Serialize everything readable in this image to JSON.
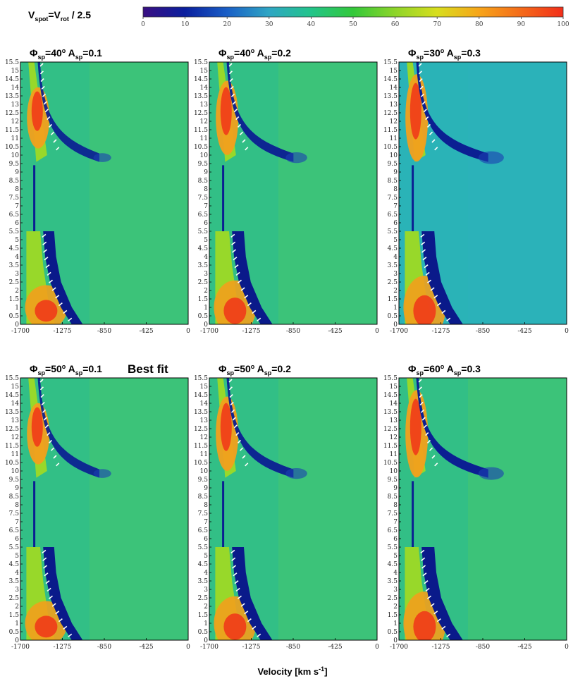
{
  "header": {
    "prefix": "V",
    "spot_sub": "spot",
    "mid": "=V",
    "rot_sub": "rot",
    "suffix": " / 2.5"
  },
  "colorbar": {
    "ticks": [
      "0",
      "10",
      "20",
      "30",
      "40",
      "50",
      "60",
      "70",
      "80",
      "90",
      "100"
    ],
    "min": 0,
    "max": 100,
    "colors": [
      "#3a0f82",
      "#0a1f9e",
      "#1a5fc6",
      "#2fa6c4",
      "#22c48a",
      "#33c83a",
      "#8ed52a",
      "#d8de1e",
      "#f7a51a",
      "#f46a1a",
      "#f22e1a"
    ]
  },
  "chart_data": {
    "type": "heatmap",
    "xlabel": "Velocity [km s",
    "xlabel_sup": "-1",
    "xlabel_end": "]",
    "x_ticks": [
      "-1700",
      "-1275",
      "-850",
      "-425",
      "0"
    ],
    "xlim": [
      -1700,
      0
    ],
    "ylim": [
      0,
      15.5
    ],
    "y_ticks": [
      "0",
      "0.5",
      "1",
      "1.5",
      "2",
      "2.5",
      "3",
      "3.5",
      "4",
      "4.5",
      "5",
      "5.5",
      "6",
      "6.5",
      "7",
      "7.5",
      "8",
      "8.5",
      "9",
      "9.5",
      "10",
      "10.5",
      "11",
      "11.5",
      "12",
      "12.5",
      "13",
      "13.5",
      "14",
      "14.5",
      "15",
      "15.5"
    ],
    "panels": [
      {
        "phi": "40",
        "amp": "0.1",
        "note": "",
        "strength": 0.7
      },
      {
        "phi": "40",
        "amp": "0.2",
        "note": "",
        "strength": 0.85
      },
      {
        "phi": "30",
        "amp": "0.3",
        "note": "",
        "strength": 1.0
      },
      {
        "phi": "50",
        "amp": "0.1",
        "note": "Best fit",
        "strength": 0.7
      },
      {
        "phi": "50",
        "amp": "0.2",
        "note": "",
        "strength": 0.85
      },
      {
        "phi": "60",
        "amp": "0.3",
        "note": "",
        "strength": 1.0
      }
    ]
  }
}
